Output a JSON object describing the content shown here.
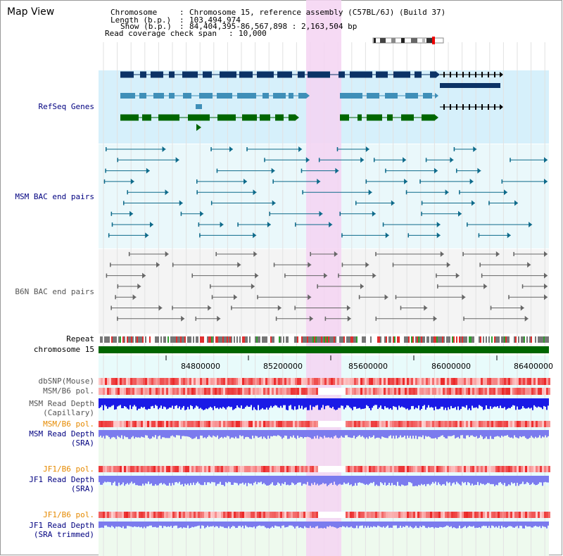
{
  "title": "Map View",
  "info": {
    "chromosome_label": "Chromosome",
    "chromosome_value": "Chromosome 15, reference assembly (C57BL/6J) (Build 37)",
    "length_label": "Length (b.p.)",
    "length_value": "103,494,974",
    "show_label": "Show (b.p.)",
    "show_value": "84,404,395-86,567,898 : 2,163,504 bp",
    "span_label": "Read coverage check span",
    "span_value": "10,000"
  },
  "tracks": {
    "refseq": "RefSeq Genes",
    "msm_bac": "MSM BAC end pairs",
    "b6n_bac": "B6N BAC end pairs",
    "repeat": "Repeat",
    "chromosome": "chromosome 15",
    "dbsnp": "dbSNP(Mouse)",
    "msm_b6_pol_1": "MSM/B6 pol.",
    "msm_depth_cap_1": "MSM Read Depth",
    "msm_depth_cap_2": "(Capillary)",
    "msm_b6_pol_2": "MSM/B6 pol.",
    "msm_depth_sra_1": "MSM Read Depth",
    "msm_depth_sra_2": "(SRA)",
    "jf1_b6_pol_1": "JF1/B6 pol.",
    "jf1_depth_sra_1": "JF1 Read Depth",
    "jf1_depth_sra_2": "(SRA)",
    "jf1_b6_pol_2": "JF1/B6 pol.",
    "jf1_depth_trim_1": "JF1 Read Depth",
    "jf1_depth_trim_2": "(SRA trimmed)"
  },
  "axis": {
    "ticks": [
      "84800000",
      "85200000",
      "85600000",
      "86000000",
      "86400000"
    ]
  },
  "colors": {
    "refseq_bg": "#d6f0fb",
    "bac_bg": "#eaf8fb",
    "b6n_bg": "#f4f4f4",
    "highlight": "#f5d3f2",
    "gene_dark": "#0c3366",
    "gene_mid": "#3f8fb8",
    "gene_green": "#006600",
    "chromosome": "#006600",
    "depth_blue": "#1a1ae6",
    "depth_light": "#7b7bee"
  }
}
